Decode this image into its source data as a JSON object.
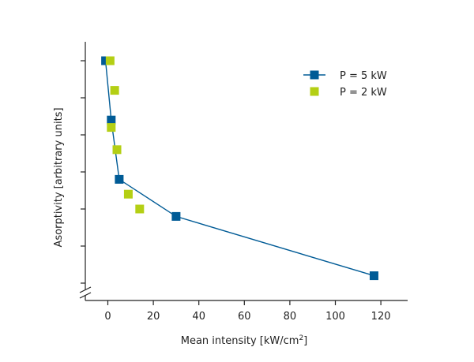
{
  "chart_data": {
    "type": "scatter",
    "xlabel": "Mean intensity [kW/cm",
    "xlabel_sup": "2",
    "xlabel_end": "]",
    "ylabel": "Asorptivity [arbitrary units]",
    "xlim": [
      -10,
      130
    ],
    "ylim": [
      0,
      7
    ],
    "x_ticks": [
      0,
      20,
      40,
      60,
      80,
      100,
      120
    ],
    "x_tick_labels": [
      "0",
      "20",
      "40",
      "60",
      "80",
      "100",
      "120"
    ],
    "y_ticks": [
      1,
      2,
      3,
      4,
      5,
      6,
      7
    ],
    "y_tick_labels_shown": false,
    "y_axis_break": true,
    "grid": false,
    "legend_position": "top-right",
    "series": [
      {
        "name": "P = 5 kW",
        "color": "#005b96",
        "marker": "square",
        "connected": true,
        "points": [
          [
            -1,
            7.0
          ],
          [
            1.5,
            5.4
          ],
          [
            5,
            3.8
          ],
          [
            30,
            2.8
          ],
          [
            117,
            1.2
          ]
        ]
      },
      {
        "name": "P = 2 kW",
        "color": "#b4cf14",
        "marker": "square",
        "connected": false,
        "points": [
          [
            1,
            7.0
          ],
          [
            3,
            6.2
          ],
          [
            1.5,
            5.2
          ],
          [
            4,
            4.6
          ],
          [
            9,
            3.4
          ],
          [
            14,
            3.0
          ]
        ]
      }
    ]
  }
}
